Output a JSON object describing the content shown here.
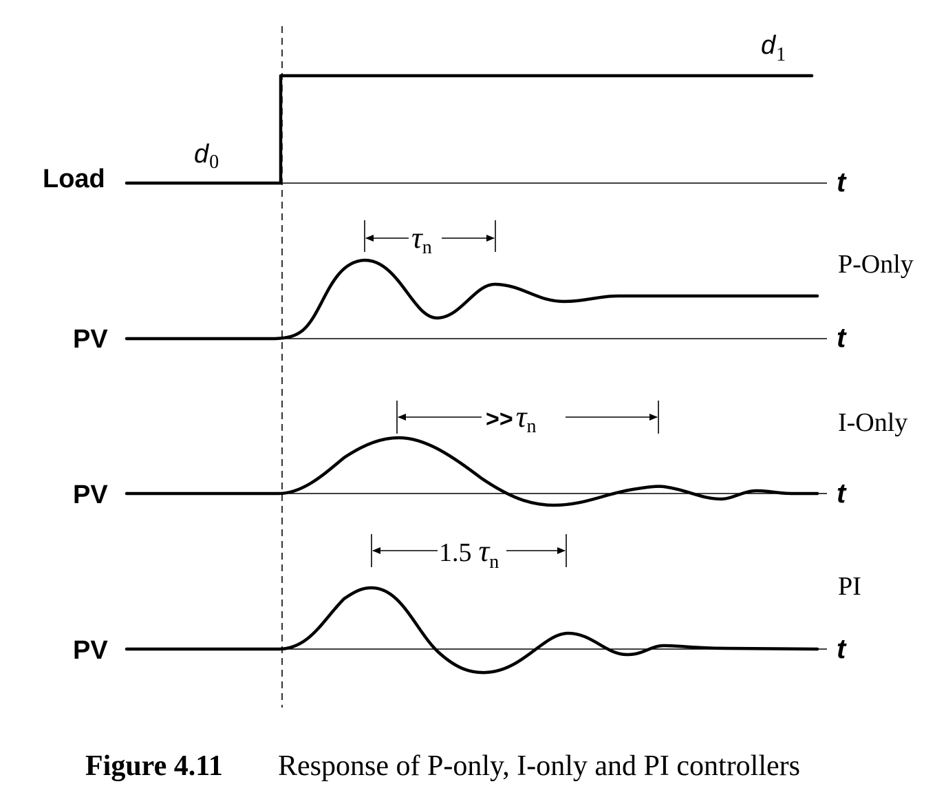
{
  "load": {
    "label": "Load",
    "d0": {
      "base": "d",
      "sub": "0"
    },
    "d1": {
      "base": "d",
      "sub": "1"
    }
  },
  "panels": [
    {
      "label": "PV",
      "name": "P-Only",
      "interval": {
        "prefix": "",
        "symbol": "τ",
        "sub": "n"
      }
    },
    {
      "label": "PV",
      "name": "I-Only",
      "interval": {
        "prefix": ">>",
        "symbol": "τ",
        "sub": "n"
      }
    },
    {
      "label": "PV",
      "name": "PI",
      "interval": {
        "prefix": "1.5",
        "symbol": "τ",
        "sub": "n"
      }
    }
  ],
  "time_axis_label": "t",
  "caption": {
    "number": "Figure 4.11",
    "text": "Response of P-only, I-only and PI controllers"
  }
}
